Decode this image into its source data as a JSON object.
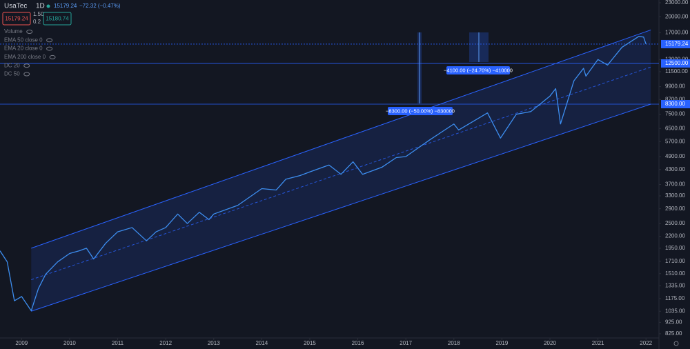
{
  "header": {
    "symbol": "UsaTec",
    "interval": "1D",
    "last": "15179.24",
    "change": "−72.32 (−0.47%)",
    "bid": "15179.24",
    "spread_top": "1.50",
    "spread_bottom": "0.2",
    "ask": "15180.74",
    "indicators": [
      "Volume",
      "EMA 50 close 0",
      "EMA 20 close 0",
      "EMA 200 close 0",
      "DC 20",
      "DC 50"
    ]
  },
  "chart_data": {
    "type": "line",
    "log_scale": true,
    "x": [
      2008.55,
      2008.7,
      2008.85,
      2009.0,
      2009.2,
      2009.35,
      2009.5,
      2009.75,
      2010.0,
      2010.2,
      2010.35,
      2010.5,
      2010.75,
      2011.0,
      2011.3,
      2011.6,
      2011.8,
      2012.0,
      2012.25,
      2012.45,
      2012.7,
      2012.9,
      2013.0,
      2013.5,
      2014.0,
      2014.3,
      2014.5,
      2014.8,
      2015.0,
      2015.4,
      2015.65,
      2015.9,
      2016.1,
      2016.5,
      2016.8,
      2017.0,
      2017.5,
      2018.0,
      2018.1,
      2018.7,
      2018.97,
      2019.3,
      2019.6,
      2020.0,
      2020.12,
      2020.22,
      2020.5,
      2020.7,
      2020.75,
      2021.0,
      2021.2,
      2021.5,
      2021.85,
      2021.95,
      2022.0
    ],
    "series": [
      {
        "name": "UsaTec",
        "color": "#3d8ef0",
        "values": [
          1900,
          1700,
          1150,
          1200,
          1040,
          1300,
          1500,
          1700,
          1850,
          1900,
          1950,
          1750,
          2050,
          2300,
          2400,
          2100,
          2300,
          2400,
          2750,
          2500,
          2800,
          2600,
          2750,
          3000,
          3550,
          3500,
          3900,
          4050,
          4200,
          4500,
          4100,
          4650,
          4100,
          4400,
          4850,
          4900,
          5800,
          6800,
          6400,
          7600,
          5900,
          7500,
          7700,
          9000,
          9700,
          6800,
          10500,
          11900,
          11000,
          13000,
          12300,
          14700,
          16400,
          16300,
          15179.24
        ]
      }
    ],
    "channel": {
      "x": [
        2009.2,
        2022.1
      ],
      "upper": [
        1950,
        17500
      ],
      "lower": [
        1035,
        8300
      ],
      "color": "#2962ff"
    },
    "hlines": [
      15179.24,
      {
        "value": 12500,
        "label": "12500.00"
      },
      {
        "value": 8300,
        "label": "8300.00"
      }
    ],
    "measures": [
      "−8300.00 (−50.00%) −830000",
      "−4100.00 (−24.70%) −410000"
    ],
    "xlim": [
      2008.55,
      2022.27
    ],
    "xticks": [
      2009,
      2010,
      2011,
      2012,
      2013,
      2014,
      2015,
      2016,
      2017,
      2018,
      2019,
      2020,
      2021,
      2022
    ],
    "ylim": [
      791,
      23650
    ],
    "yticks": [
      {
        "value": 23000,
        "label": "23000.00"
      },
      {
        "value": 20000,
        "label": "20000.00"
      },
      {
        "value": 17000,
        "label": "17000.00"
      },
      {
        "value": 13000,
        "label": "13000.00"
      },
      {
        "value": 11500,
        "label": "11500.00"
      },
      {
        "value": 9900,
        "label": "9900.00"
      },
      {
        "value": 8700,
        "label": "8700.00"
      },
      {
        "value": 7500,
        "label": "7500.00"
      },
      {
        "value": 6500,
        "label": "6500.00"
      },
      {
        "value": 5700,
        "label": "5700.00"
      },
      {
        "value": 4900,
        "label": "4900.00"
      },
      {
        "value": 4300,
        "label": "4300.00"
      },
      {
        "value": 3700,
        "label": "3700.00"
      },
      {
        "value": 3300,
        "label": "3300.00"
      },
      {
        "value": 2900,
        "label": "2900.00"
      },
      {
        "value": 2500,
        "label": "2500.00"
      },
      {
        "value": 2200,
        "label": "2200.00"
      },
      {
        "value": 1950,
        "label": "1950.00"
      },
      {
        "value": 1710,
        "label": "1710.00"
      },
      {
        "value": 1510,
        "label": "1510.00"
      },
      {
        "value": 1335,
        "label": "1335.00"
      },
      {
        "value": 1175,
        "label": "1175.00"
      },
      {
        "value": 1035,
        "label": "1035.00"
      },
      {
        "value": 925,
        "label": "925.00"
      },
      {
        "value": 825,
        "label": "825.00"
      }
    ],
    "grid": false
  }
}
